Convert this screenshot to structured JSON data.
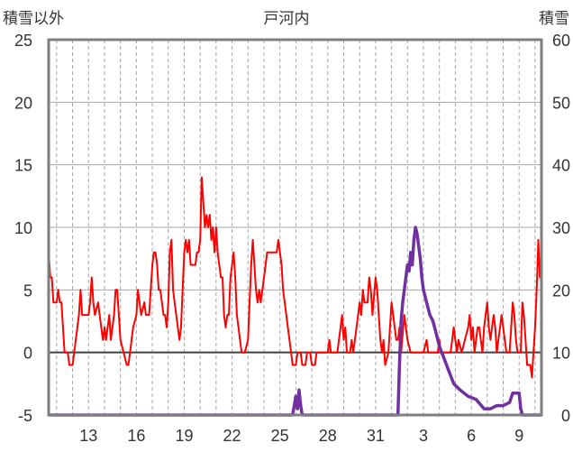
{
  "chart_data": {
    "type": "line",
    "title": "戸河内",
    "y_left_label": "積雪以外",
    "y_right_label": "積雪",
    "y_left_range": [
      -5,
      25
    ],
    "y_left_ticks": [
      "25",
      "20",
      "15",
      "10",
      "5",
      "0",
      "-5"
    ],
    "y_right_range": [
      0,
      60
    ],
    "y_right_ticks": [
      "60",
      "50",
      "40",
      "30",
      "20",
      "10",
      "0"
    ],
    "x_range": [
      10.5,
      41.4
    ],
    "x_ticks": [
      "13",
      "16",
      "19",
      "22",
      "25",
      "28",
      "31",
      "3",
      "6",
      "9"
    ],
    "x_tick_positions": [
      13,
      16,
      19,
      22,
      25,
      28,
      31,
      34,
      37,
      40
    ],
    "grid": "horizontal solid, vertical dashed daily",
    "colors": {
      "snow_non": "#ff0000",
      "snow": "#7030a0",
      "zero_line": "#404040",
      "frame": "#7f7f7f",
      "grid": "#a6a6a6"
    },
    "series": [
      {
        "axis": "left",
        "color": "#ff0000",
        "points": [
          [
            10.5,
            8
          ],
          [
            10.6,
            6
          ],
          [
            10.7,
            6
          ],
          [
            10.8,
            4
          ],
          [
            11.0,
            4
          ],
          [
            11.1,
            5
          ],
          [
            11.2,
            4
          ],
          [
            11.3,
            4
          ],
          [
            11.4,
            2
          ],
          [
            11.5,
            0
          ],
          [
            11.7,
            0
          ],
          [
            11.8,
            -1
          ],
          [
            12.0,
            -1
          ],
          [
            12.2,
            1
          ],
          [
            12.4,
            3
          ],
          [
            12.5,
            5
          ],
          [
            12.6,
            3
          ],
          [
            12.8,
            3
          ],
          [
            13.0,
            3
          ],
          [
            13.1,
            4
          ],
          [
            13.2,
            6
          ],
          [
            13.3,
            4
          ],
          [
            13.4,
            3
          ],
          [
            13.6,
            4
          ],
          [
            13.7,
            3
          ],
          [
            13.8,
            2
          ],
          [
            13.9,
            1
          ],
          [
            14.0,
            2
          ],
          [
            14.1,
            1
          ],
          [
            14.2,
            2
          ],
          [
            14.3,
            3
          ],
          [
            14.4,
            1
          ],
          [
            14.5,
            2
          ],
          [
            14.6,
            3
          ],
          [
            14.7,
            5
          ],
          [
            14.8,
            5
          ],
          [
            14.9,
            3
          ],
          [
            15.0,
            1
          ],
          [
            15.2,
            0
          ],
          [
            15.4,
            -1
          ],
          [
            15.5,
            -1
          ],
          [
            15.6,
            0
          ],
          [
            15.8,
            2
          ],
          [
            16.0,
            3
          ],
          [
            16.1,
            5
          ],
          [
            16.2,
            4
          ],
          [
            16.3,
            3
          ],
          [
            16.5,
            4
          ],
          [
            16.6,
            3
          ],
          [
            16.8,
            3
          ],
          [
            17.0,
            7
          ],
          [
            17.1,
            8
          ],
          [
            17.2,
            8
          ],
          [
            17.3,
            7
          ],
          [
            17.4,
            5
          ],
          [
            17.5,
            5
          ],
          [
            17.6,
            4
          ],
          [
            17.7,
            3
          ],
          [
            17.8,
            3
          ],
          [
            17.9,
            2
          ],
          [
            18.0,
            4
          ],
          [
            18.1,
            8
          ],
          [
            18.2,
            9
          ],
          [
            18.3,
            5
          ],
          [
            18.4,
            4
          ],
          [
            18.5,
            3
          ],
          [
            18.6,
            2
          ],
          [
            18.7,
            1
          ],
          [
            18.8,
            2
          ],
          [
            18.9,
            5
          ],
          [
            19.0,
            8
          ],
          [
            19.1,
            9
          ],
          [
            19.2,
            8
          ],
          [
            19.3,
            9
          ],
          [
            19.4,
            7
          ],
          [
            19.5,
            7
          ],
          [
            19.7,
            7
          ],
          [
            19.8,
            8
          ],
          [
            19.9,
            8
          ],
          [
            20.0,
            9
          ],
          [
            20.1,
            14
          ],
          [
            20.2,
            12
          ],
          [
            20.3,
            10
          ],
          [
            20.4,
            11
          ],
          [
            20.5,
            10
          ],
          [
            20.6,
            11
          ],
          [
            20.7,
            9
          ],
          [
            20.8,
            10
          ],
          [
            20.9,
            8
          ],
          [
            21.0,
            10
          ],
          [
            21.1,
            8
          ],
          [
            21.2,
            7
          ],
          [
            21.3,
            6
          ],
          [
            21.4,
            6
          ],
          [
            21.5,
            3
          ],
          [
            21.6,
            2
          ],
          [
            21.7,
            3
          ],
          [
            21.8,
            3
          ],
          [
            21.9,
            6
          ],
          [
            22.0,
            7
          ],
          [
            22.1,
            8
          ],
          [
            22.2,
            6
          ],
          [
            22.3,
            3
          ],
          [
            22.4,
            2
          ],
          [
            22.5,
            1
          ],
          [
            22.6,
            0
          ],
          [
            22.8,
            0
          ],
          [
            23.0,
            1
          ],
          [
            23.1,
            4
          ],
          [
            23.2,
            7
          ],
          [
            23.3,
            9
          ],
          [
            23.4,
            7
          ],
          [
            23.5,
            5
          ],
          [
            23.6,
            4
          ],
          [
            23.7,
            5
          ],
          [
            23.8,
            4
          ],
          [
            23.9,
            5
          ],
          [
            24.0,
            6
          ],
          [
            24.1,
            7
          ],
          [
            24.2,
            8
          ],
          [
            24.4,
            8
          ],
          [
            24.6,
            8
          ],
          [
            24.8,
            8
          ],
          [
            24.9,
            9
          ],
          [
            25.0,
            8
          ],
          [
            25.1,
            7
          ],
          [
            25.2,
            5
          ],
          [
            25.3,
            4
          ],
          [
            25.4,
            3
          ],
          [
            25.5,
            2
          ],
          [
            25.6,
            1
          ],
          [
            25.7,
            0
          ],
          [
            25.8,
            -1
          ],
          [
            26.0,
            -1
          ],
          [
            26.1,
            0
          ],
          [
            26.3,
            0
          ],
          [
            26.4,
            -1
          ],
          [
            26.6,
            -1
          ],
          [
            26.7,
            0
          ],
          [
            26.9,
            0
          ],
          [
            27.0,
            -1
          ],
          [
            27.2,
            -1
          ],
          [
            27.3,
            0
          ],
          [
            27.5,
            0
          ],
          [
            27.7,
            0
          ],
          [
            27.9,
            0
          ],
          [
            28.0,
            0
          ],
          [
            28.1,
            1
          ],
          [
            28.2,
            0
          ],
          [
            28.4,
            0
          ],
          [
            28.6,
            0
          ],
          [
            28.7,
            1
          ],
          [
            28.8,
            2
          ],
          [
            28.9,
            3
          ],
          [
            29.0,
            1
          ],
          [
            29.1,
            2
          ],
          [
            29.2,
            0
          ],
          [
            29.4,
            0
          ],
          [
            29.5,
            1
          ],
          [
            29.6,
            0
          ],
          [
            29.8,
            2
          ],
          [
            30.0,
            4
          ],
          [
            30.1,
            3
          ],
          [
            30.2,
            5
          ],
          [
            30.3,
            4
          ],
          [
            30.5,
            4
          ],
          [
            30.6,
            6
          ],
          [
            30.7,
            5
          ],
          [
            30.8,
            3
          ],
          [
            31.0,
            6
          ],
          [
            31.1,
            5
          ],
          [
            31.2,
            3
          ],
          [
            31.3,
            1
          ],
          [
            31.4,
            0
          ],
          [
            31.5,
            1
          ],
          [
            31.6,
            -1
          ],
          [
            31.8,
            0
          ],
          [
            32.0,
            4
          ],
          [
            32.1,
            3
          ],
          [
            32.2,
            2
          ],
          [
            32.3,
            1
          ],
          [
            32.4,
            1
          ],
          [
            32.5,
            2
          ],
          [
            32.6,
            0
          ],
          [
            32.8,
            3
          ],
          [
            32.9,
            2
          ],
          [
            33.0,
            1
          ],
          [
            33.2,
            0
          ],
          [
            33.4,
            0
          ],
          [
            33.6,
            0
          ],
          [
            33.8,
            0
          ],
          [
            34.0,
            0
          ],
          [
            34.2,
            1
          ],
          [
            34.3,
            0
          ],
          [
            34.5,
            0
          ],
          [
            34.7,
            0
          ],
          [
            34.9,
            0
          ],
          [
            35.0,
            1
          ],
          [
            35.1,
            0
          ],
          [
            35.3,
            0
          ],
          [
            35.5,
            0
          ],
          [
            35.7,
            0
          ],
          [
            35.8,
            1
          ],
          [
            35.9,
            2
          ],
          [
            36.0,
            1
          ],
          [
            36.1,
            0
          ],
          [
            36.2,
            1
          ],
          [
            36.4,
            0
          ],
          [
            36.6,
            1
          ],
          [
            36.8,
            2
          ],
          [
            36.9,
            3
          ],
          [
            37.0,
            1
          ],
          [
            37.1,
            2
          ],
          [
            37.2,
            0
          ],
          [
            37.3,
            1
          ],
          [
            37.4,
            2
          ],
          [
            37.5,
            2
          ],
          [
            37.6,
            1
          ],
          [
            37.7,
            0
          ],
          [
            37.8,
            2
          ],
          [
            37.9,
            3
          ],
          [
            38.0,
            4
          ],
          [
            38.1,
            2
          ],
          [
            38.2,
            1
          ],
          [
            38.3,
            2
          ],
          [
            38.4,
            3
          ],
          [
            38.5,
            2
          ],
          [
            38.6,
            0
          ],
          [
            38.7,
            1
          ],
          [
            38.8,
            2
          ],
          [
            38.9,
            3
          ],
          [
            39.0,
            2
          ],
          [
            39.1,
            1
          ],
          [
            39.2,
            0
          ],
          [
            39.4,
            0
          ],
          [
            39.5,
            2
          ],
          [
            39.6,
            4
          ],
          [
            39.7,
            3
          ],
          [
            39.8,
            1
          ],
          [
            39.9,
            0
          ],
          [
            40.0,
            0
          ],
          [
            40.1,
            0
          ],
          [
            40.2,
            4
          ],
          [
            40.3,
            3
          ],
          [
            40.4,
            1
          ],
          [
            40.5,
            -1
          ],
          [
            40.6,
            -1
          ],
          [
            40.7,
            -1
          ],
          [
            40.8,
            -2
          ],
          [
            40.9,
            0
          ],
          [
            41.0,
            2
          ],
          [
            41.1,
            5
          ],
          [
            41.2,
            9
          ],
          [
            41.3,
            6
          ],
          [
            41.4,
            7
          ]
        ]
      },
      {
        "axis": "right",
        "color": "#7030a0",
        "points": [
          [
            10.5,
            0
          ],
          [
            25.8,
            0
          ],
          [
            25.9,
            1.5
          ],
          [
            26.0,
            3
          ],
          [
            26.1,
            1
          ],
          [
            26.2,
            4
          ],
          [
            26.3,
            1.5
          ],
          [
            26.4,
            0
          ],
          [
            32.4,
            0
          ],
          [
            32.5,
            8
          ],
          [
            32.6,
            15
          ],
          [
            32.7,
            18
          ],
          [
            32.8,
            20
          ],
          [
            32.9,
            22
          ],
          [
            33.0,
            24
          ],
          [
            33.1,
            23
          ],
          [
            33.2,
            26
          ],
          [
            33.3,
            24
          ],
          [
            33.4,
            28
          ],
          [
            33.5,
            30
          ],
          [
            33.6,
            29
          ],
          [
            33.7,
            27
          ],
          [
            33.8,
            25
          ],
          [
            33.9,
            22
          ],
          [
            34.0,
            20
          ],
          [
            34.2,
            18
          ],
          [
            34.4,
            16
          ],
          [
            34.6,
            15
          ],
          [
            34.8,
            13
          ],
          [
            35.0,
            11
          ],
          [
            35.3,
            9
          ],
          [
            35.6,
            7
          ],
          [
            35.9,
            5
          ],
          [
            36.3,
            4
          ],
          [
            36.8,
            3
          ],
          [
            37.3,
            2.5
          ],
          [
            37.8,
            1
          ],
          [
            38.2,
            1
          ],
          [
            38.6,
            1.5
          ],
          [
            39.0,
            1.5
          ],
          [
            39.4,
            2
          ],
          [
            39.6,
            3.5
          ],
          [
            40.0,
            3.5
          ],
          [
            40.1,
            1
          ],
          [
            40.2,
            0
          ],
          [
            41.4,
            0
          ]
        ]
      }
    ]
  }
}
